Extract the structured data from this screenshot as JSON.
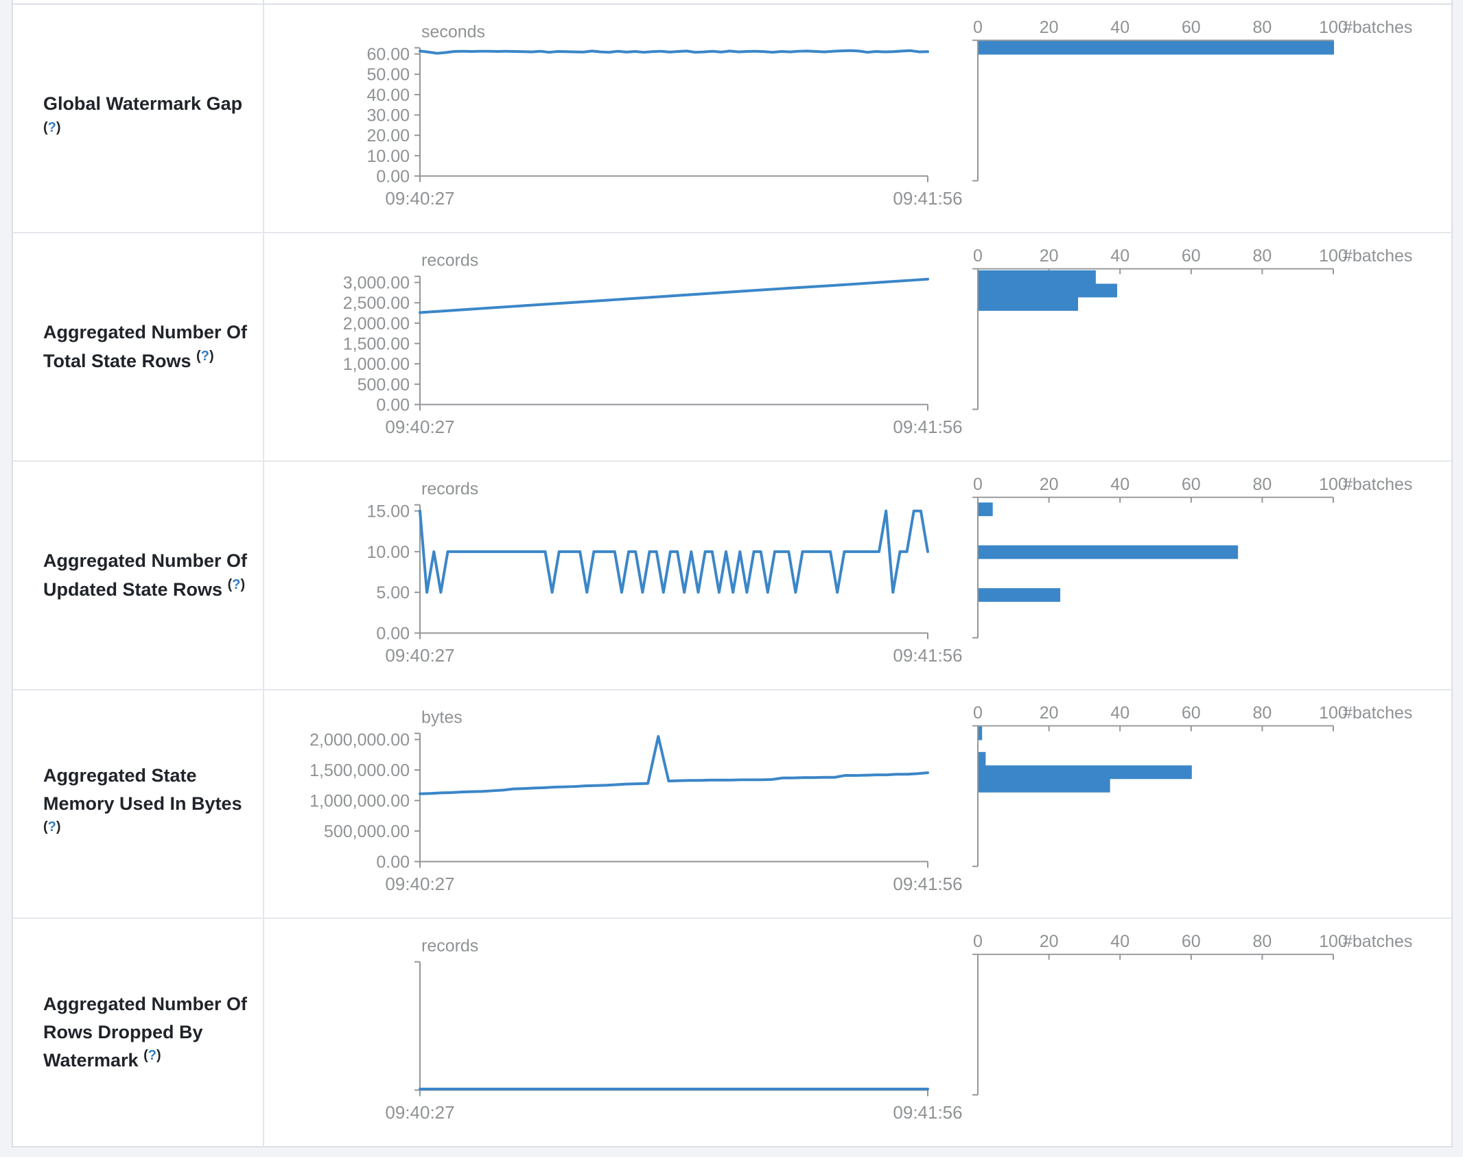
{
  "x_axis": {
    "start_label": "09:40:27",
    "end_label": "09:41:56"
  },
  "hist_axis": {
    "tick_labels": [
      "0",
      "20",
      "40",
      "60",
      "80",
      "100"
    ],
    "tick_values": [
      0,
      20,
      40,
      60,
      80,
      100
    ],
    "max": 100,
    "label": "#batches"
  },
  "colors": {
    "accent_blue": "#3b86c8",
    "axis_gray": "#939699",
    "help_blue": "#2e7cc3"
  },
  "chart_data": [
    {
      "type": "line+histogram",
      "label": "Global Watermark Gap",
      "help": {
        "open": "(",
        "q": "?",
        "close": ")"
      },
      "unit": "seconds",
      "xlabel_start": "09:40:27",
      "xlabel_end": "09:41:56",
      "y_ticks": [
        {
          "label": "60.00",
          "v": 60
        },
        {
          "label": "50.00",
          "v": 50
        },
        {
          "label": "40.00",
          "v": 40
        },
        {
          "label": "30.00",
          "v": 30
        },
        {
          "label": "20.00",
          "v": 20
        },
        {
          "label": "10.00",
          "v": 10
        },
        {
          "label": "0.00",
          "v": 0
        }
      ],
      "y_tick_max": 60,
      "domain_max": 63.5,
      "series": [
        61.4,
        60.9,
        60.3,
        60.7,
        61.2,
        61.3,
        61.2,
        61.3,
        61.3,
        61.2,
        61.3,
        61.2,
        61.1,
        61.0,
        61.3,
        60.8,
        61.2,
        61.1,
        61.0,
        60.9,
        61.4,
        61.0,
        60.8,
        61.3,
        60.9,
        61.2,
        60.8,
        61.1,
        61.3,
        60.9,
        61.2,
        61.4,
        60.8,
        61.0,
        61.3,
        60.9,
        61.4,
        61.0,
        61.2,
        61.3,
        61.1,
        60.8,
        61.2,
        61.0,
        61.3,
        61.4,
        61.2,
        61.0,
        61.3,
        61.5,
        61.6,
        61.4,
        60.8,
        61.2,
        61.0,
        61.1,
        61.4,
        61.6,
        61.0,
        61.1
      ],
      "histogram": [
        {
          "bin": 61,
          "count": 100
        }
      ]
    },
    {
      "type": "line+histogram",
      "label": "Aggregated Number Of Total State Rows",
      "help": {
        "open": "(",
        "q": "?",
        "close": ")"
      },
      "unit": "records",
      "xlabel_start": "09:40:27",
      "xlabel_end": "09:41:56",
      "y_ticks": [
        {
          "label": "3,000.00",
          "v": 3000
        },
        {
          "label": "2,500.00",
          "v": 2500
        },
        {
          "label": "2,000.00",
          "v": 2000
        },
        {
          "label": "1,500.00",
          "v": 1500
        },
        {
          "label": "1,000.00",
          "v": 1000
        },
        {
          "label": "500.00",
          "v": 500
        },
        {
          "label": "0.00",
          "v": 0
        }
      ],
      "y_tick_max": 3000,
      "domain_max": 3135,
      "series": [
        2260,
        2335,
        2410,
        2485,
        2560,
        2635,
        2710,
        2785,
        2860,
        2930,
        3005,
        3080
      ],
      "histogram": [
        {
          "bin": 2950,
          "count": 33
        },
        {
          "bin": 2650,
          "count": 39
        },
        {
          "bin": 2350,
          "count": 28
        }
      ]
    },
    {
      "type": "line+histogram",
      "label": "Aggregated Number Of Updated State Rows",
      "help": {
        "open": "(",
        "q": "?",
        "close": ")"
      },
      "unit": "records",
      "xlabel_start": "09:40:27",
      "xlabel_end": "09:41:56",
      "y_ticks": [
        {
          "label": "15.00",
          "v": 15
        },
        {
          "label": "10.00",
          "v": 10
        },
        {
          "label": "5.00",
          "v": 5
        },
        {
          "label": "0.00",
          "v": 0
        }
      ],
      "y_tick_max": 15,
      "domain_max": 16.4,
      "series": [
        15,
        5,
        10,
        5,
        10,
        10,
        10,
        10,
        10,
        10,
        10,
        10,
        10,
        10,
        10,
        10,
        10,
        10,
        10,
        5,
        10,
        10,
        10,
        10,
        5,
        10,
        10,
        10,
        10,
        5,
        10,
        10,
        5,
        10,
        10,
        5,
        10,
        10,
        5,
        10,
        5,
        10,
        10,
        5,
        10,
        5,
        10,
        5,
        10,
        10,
        5,
        10,
        10,
        10,
        5,
        10,
        10,
        10,
        10,
        10,
        5,
        10,
        10,
        10,
        10,
        10,
        10,
        15,
        5,
        10,
        10,
        15,
        15,
        10
      ],
      "histogram": [
        {
          "bin": 15,
          "count": 4
        },
        {
          "bin": 10,
          "count": 73
        },
        {
          "bin": 5,
          "count": 23
        }
      ]
    },
    {
      "type": "line+histogram",
      "label": "Aggregated State Memory Used In Bytes",
      "help": {
        "open": "(",
        "q": "?",
        "close": ")"
      },
      "unit": "bytes",
      "xlabel_start": "09:40:27",
      "xlabel_end": "09:41:56",
      "y_ticks": [
        {
          "label": "2,000,000.00",
          "v": 2000000
        },
        {
          "label": "1,500,000.00",
          "v": 1500000
        },
        {
          "label": "1,000,000.00",
          "v": 1000000
        },
        {
          "label": "500,000.00",
          "v": 500000
        },
        {
          "label": "0.00",
          "v": 0
        }
      ],
      "y_tick_max": 2000000,
      "domain_max": 2090000,
      "series": [
        1110000,
        1115000,
        1125000,
        1130000,
        1140000,
        1145000,
        1150000,
        1160000,
        1170000,
        1190000,
        1195000,
        1205000,
        1210000,
        1220000,
        1225000,
        1230000,
        1240000,
        1245000,
        1250000,
        1260000,
        1270000,
        1275000,
        1280000,
        2050000,
        1320000,
        1325000,
        1330000,
        1330000,
        1335000,
        1335000,
        1335000,
        1340000,
        1340000,
        1340000,
        1345000,
        1370000,
        1370000,
        1375000,
        1375000,
        1380000,
        1380000,
        1410000,
        1410000,
        1415000,
        1420000,
        1420000,
        1430000,
        1430000,
        1440000,
        1455000
      ],
      "histogram": [
        {
          "bin": 2050000,
          "count": 1
        },
        {
          "bin": 1600000,
          "count": 2
        },
        {
          "bin": 1400000,
          "count": 60
        },
        {
          "bin": 1200000,
          "count": 37
        }
      ]
    },
    {
      "type": "line+histogram",
      "label": "Aggregated Number Of Rows Dropped By Watermark",
      "help": {
        "open": "(",
        "q": "?",
        "close": ")"
      },
      "unit": "records",
      "xlabel_start": "09:40:27",
      "xlabel_end": "09:41:56",
      "y_ticks": [],
      "y_tick_max": null,
      "domain_max": null,
      "series": [
        0,
        0
      ],
      "histogram": []
    }
  ]
}
